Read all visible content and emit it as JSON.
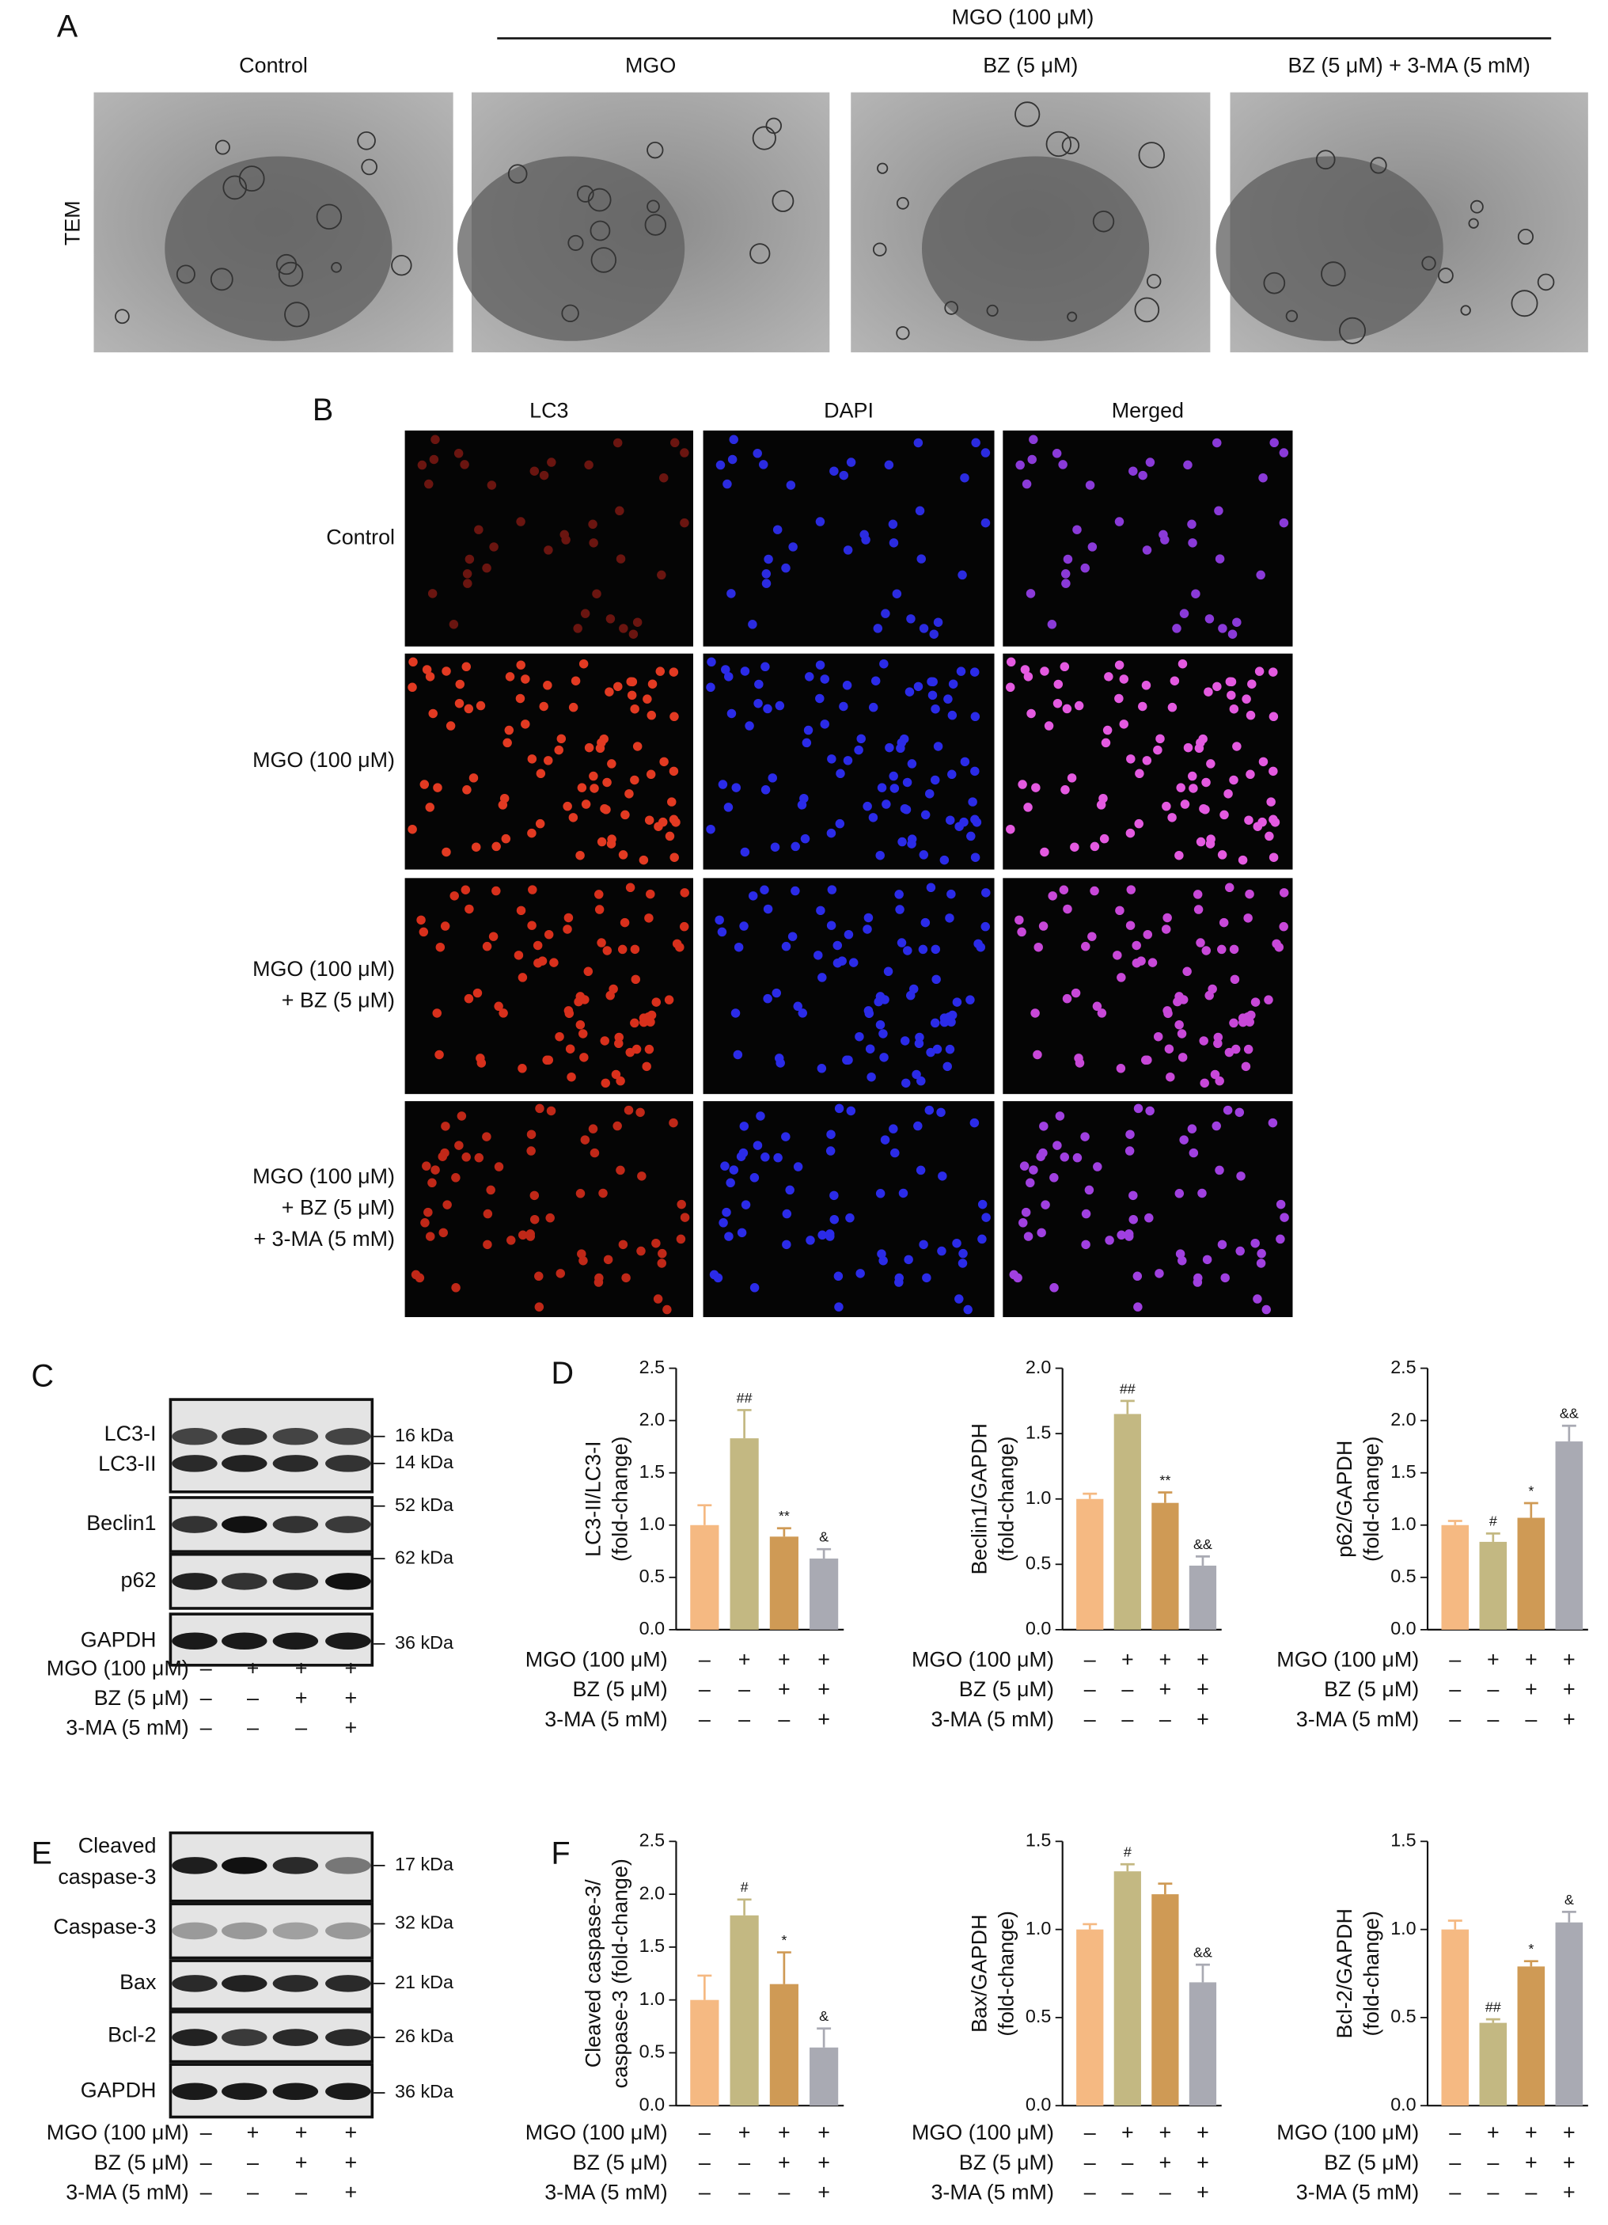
{
  "panel_a": {
    "letter": "A",
    "group_label": "MGO (100 μM)",
    "columns": [
      "Control",
      "MGO",
      "BZ (5 μM)",
      "BZ (5 μM) + 3-MA (5 mM)"
    ],
    "row_label": "TEM"
  },
  "panel_b": {
    "letter": "B",
    "columns": [
      "LC3",
      "DAPI",
      "Merged"
    ],
    "rows": [
      [
        "Control"
      ],
      [
        "MGO (100 μM)"
      ],
      [
        "MGO (100 μM)",
        "+ BZ (5 μM)"
      ],
      [
        "MGO (100 μM)",
        "+ BZ (5 μM)",
        "+ 3-MA (5 mM)"
      ]
    ]
  },
  "panel_c": {
    "letter": "C",
    "bands": [
      [
        "LC3-I"
      ],
      [
        "LC3-II"
      ],
      [
        "Beclin1"
      ],
      [
        "p62"
      ],
      [
        "GAPDH"
      ]
    ],
    "sizes": [
      "16 kDa",
      "14 kDa",
      "52 kDa",
      "62 kDa",
      "36 kDa"
    ],
    "treatments": [
      {
        "label": "MGO (100 μM)",
        "signs": [
          "–",
          "+",
          "+",
          "+"
        ]
      },
      {
        "label": "BZ (5 μM)",
        "signs": [
          "–",
          "–",
          "+",
          "+"
        ]
      },
      {
        "label": "3-MA (5 mM)",
        "signs": [
          "–",
          "–",
          "–",
          "+"
        ]
      }
    ]
  },
  "panel_d": {
    "letter": "D"
  },
  "panel_e": {
    "letter": "E",
    "bands": [
      [
        "Cleaved",
        "caspase-3"
      ],
      [
        "Caspase-3"
      ],
      [
        "Bax"
      ],
      [
        "Bcl-2"
      ],
      [
        "GAPDH"
      ]
    ],
    "sizes": [
      "17 kDa",
      "32 kDa",
      "21 kDa",
      "26 kDa",
      "36 kDa"
    ],
    "treatments": [
      {
        "label": "MGO (100 μM)",
        "signs": [
          "–",
          "+",
          "+",
          "+"
        ]
      },
      {
        "label": "BZ (5 μM)",
        "signs": [
          "–",
          "–",
          "+",
          "+"
        ]
      },
      {
        "label": "3-MA (5 mM)",
        "signs": [
          "–",
          "–",
          "–",
          "+"
        ]
      }
    ]
  },
  "panel_f": {
    "letter": "F"
  },
  "chart_data": [
    {
      "type": "bar",
      "ylabel": [
        "LC3-II/LC3-I",
        "(fold-change)"
      ],
      "values": [
        1.0,
        1.83,
        0.89,
        0.68
      ],
      "errors": [
        0.19,
        0.27,
        0.08,
        0.09
      ],
      "annotations": [
        null,
        "##",
        "**",
        "&"
      ],
      "colors": [
        "#f5b982",
        "#c3b882",
        "#cf9a55",
        "#a9aab3"
      ],
      "ylim": [
        0,
        2.5
      ],
      "yticks": [
        {
          "value": 0,
          "label": "0.0"
        },
        0.5,
        {
          "value": 1,
          "label": "1.0"
        },
        1.5,
        {
          "value": 2,
          "label": "2.0"
        },
        2.5
      ],
      "treatments": [
        {
          "label": "MGO (100 μM)",
          "signs": [
            "–",
            "+",
            "+",
            "+"
          ]
        },
        {
          "label": "BZ (5 μM)",
          "signs": [
            "–",
            "–",
            "+",
            "+"
          ]
        },
        {
          "label": "3-MA (5 mM)",
          "signs": [
            "–",
            "–",
            "–",
            "+"
          ]
        }
      ]
    },
    {
      "type": "bar",
      "ylabel": [
        "Beclin1/GAPDH",
        "(fold-change)"
      ],
      "values": [
        1.0,
        1.65,
        0.97,
        0.49
      ],
      "errors": [
        0.04,
        0.1,
        0.08,
        0.07
      ],
      "annotations": [
        null,
        "##",
        "**",
        "&&"
      ],
      "colors": [
        "#f5b982",
        "#c3b882",
        "#cf9a55",
        "#a9aab3"
      ],
      "ylim": [
        0,
        2
      ],
      "yticks": [
        {
          "value": 0,
          "label": "0.0"
        },
        0.5,
        {
          "value": 1,
          "label": "1.0"
        },
        1.5,
        {
          "value": 2,
          "label": "2.0"
        }
      ],
      "treatments": [
        {
          "label": "MGO (100 μM)",
          "signs": [
            "–",
            "+",
            "+",
            "+"
          ]
        },
        {
          "label": "BZ (5 μM)",
          "signs": [
            "–",
            "–",
            "+",
            "+"
          ]
        },
        {
          "label": "3-MA (5 mM)",
          "signs": [
            "–",
            "–",
            "–",
            "+"
          ]
        }
      ]
    },
    {
      "type": "bar",
      "ylabel": [
        "p62/GAPDH",
        "(fold-change)"
      ],
      "values": [
        1.0,
        0.84,
        1.07,
        1.8
      ],
      "errors": [
        0.04,
        0.08,
        0.14,
        0.15
      ],
      "annotations": [
        null,
        "#",
        "*",
        "&&"
      ],
      "colors": [
        "#f5b982",
        "#c3b882",
        "#cf9a55",
        "#a9aab3"
      ],
      "ylim": [
        0,
        2.5
      ],
      "yticks": [
        {
          "value": 0,
          "label": "0.0"
        },
        0.5,
        {
          "value": 1,
          "label": "1.0"
        },
        1.5,
        {
          "value": 2,
          "label": "2.0"
        },
        2.5
      ],
      "treatments": [
        {
          "label": "MGO (100 μM)",
          "signs": [
            "–",
            "+",
            "+",
            "+"
          ]
        },
        {
          "label": "BZ (5 μM)",
          "signs": [
            "–",
            "–",
            "+",
            "+"
          ]
        },
        {
          "label": "3-MA (5 mM)",
          "signs": [
            "–",
            "–",
            "–",
            "+"
          ]
        }
      ]
    },
    {
      "type": "bar",
      "ylabel": [
        "Cleaved caspase-3/",
        "caspase-3 (fold-change)"
      ],
      "values": [
        1.0,
        1.8,
        1.15,
        0.55
      ],
      "errors": [
        0.23,
        0.15,
        0.3,
        0.18
      ],
      "annotations": [
        null,
        "#",
        "*",
        "&"
      ],
      "colors": [
        "#f5b982",
        "#c3b882",
        "#cf9a55",
        "#a9aab3"
      ],
      "ylim": [
        0,
        2.5
      ],
      "yticks": [
        {
          "value": 0,
          "label": "0.0"
        },
        0.5,
        {
          "value": 1,
          "label": "1.0"
        },
        1.5,
        {
          "value": 2,
          "label": "2.0"
        },
        2.5
      ],
      "treatments": [
        {
          "label": "MGO (100 μM)",
          "signs": [
            "–",
            "+",
            "+",
            "+"
          ]
        },
        {
          "label": "BZ (5 μM)",
          "signs": [
            "–",
            "–",
            "+",
            "+"
          ]
        },
        {
          "label": "3-MA (5 mM)",
          "signs": [
            "–",
            "–",
            "–",
            "+"
          ]
        }
      ]
    },
    {
      "type": "bar",
      "ylabel": [
        "Bax/GAPDH",
        "(fold-change)"
      ],
      "values": [
        1.0,
        1.33,
        1.2,
        0.7
      ],
      "errors": [
        0.03,
        0.04,
        0.06,
        0.1
      ],
      "annotations": [
        null,
        "#",
        null,
        "&&"
      ],
      "colors": [
        "#f5b982",
        "#c3b882",
        "#cf9a55",
        "#a9aab3"
      ],
      "ylim": [
        0,
        1.5
      ],
      "yticks": [
        {
          "value": 0,
          "label": "0.0"
        },
        0.5,
        {
          "value": 1,
          "label": "1.0"
        },
        1.5
      ],
      "treatments": [
        {
          "label": "MGO (100 μM)",
          "signs": [
            "–",
            "+",
            "+",
            "+"
          ]
        },
        {
          "label": "BZ (5 μM)",
          "signs": [
            "–",
            "–",
            "+",
            "+"
          ]
        },
        {
          "label": "3-MA (5 mM)",
          "signs": [
            "–",
            "–",
            "–",
            "+"
          ]
        }
      ]
    },
    {
      "type": "bar",
      "ylabel": [
        "Bcl-2/GAPDH",
        "(fold-change)"
      ],
      "values": [
        1.0,
        0.47,
        0.79,
        1.04
      ],
      "errors": [
        0.05,
        0.02,
        0.03,
        0.06
      ],
      "annotations": [
        null,
        "##",
        "*",
        "&"
      ],
      "colors": [
        "#f5b982",
        "#c3b882",
        "#cf9a55",
        "#a9aab3"
      ],
      "ylim": [
        0,
        1.5
      ],
      "yticks": [
        {
          "value": 0,
          "label": "0.0"
        },
        0.5,
        {
          "value": 1,
          "label": "1.0"
        },
        1.5
      ],
      "treatments": [
        {
          "label": "MGO (100 μM)",
          "signs": [
            "–",
            "+",
            "+",
            "+"
          ]
        },
        {
          "label": "BZ (5 μM)",
          "signs": [
            "–",
            "–",
            "+",
            "+"
          ]
        },
        {
          "label": "3-MA (5 mM)",
          "signs": [
            "–",
            "–",
            "–",
            "+"
          ]
        }
      ]
    }
  ]
}
